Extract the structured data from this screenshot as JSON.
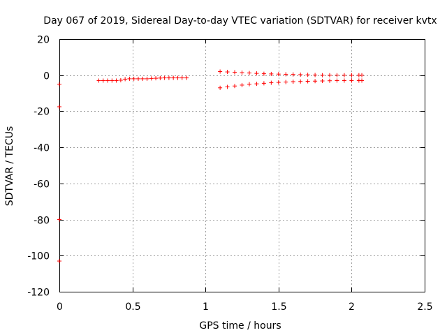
{
  "chart_data": {
    "type": "scatter",
    "title": "Day 067 of 2019, Sidereal Day-to-day VTEC variation (SDTVAR) for receiver kvtx",
    "xlabel": "GPS time / hours",
    "ylabel": "SDTVAR / TECUs",
    "xlim": [
      0,
      2.5
    ],
    "ylim": [
      -120,
      20
    ],
    "xticks": [
      0,
      0.5,
      1,
      1.5,
      2,
      2.5
    ],
    "xtick_labels": [
      "0",
      "0.5",
      "1",
      "1.5",
      "2",
      "2.5"
    ],
    "yticks": [
      20,
      0,
      -20,
      -40,
      -60,
      -80,
      -100,
      -120
    ],
    "ytick_labels": [
      "20",
      "0",
      "-20",
      "-40",
      "-60",
      "-80",
      "-100",
      "-120"
    ],
    "grid": true,
    "marker": "plus",
    "marker_color": "#ff0000",
    "series": [
      {
        "points": [
          [
            0.0,
            -5
          ],
          [
            0.0,
            -17.5
          ],
          [
            0.0,
            -80
          ],
          [
            0.0,
            -103
          ],
          [
            0.27,
            -3.0
          ],
          [
            0.3,
            -3.0
          ],
          [
            0.33,
            -3.0
          ],
          [
            0.36,
            -3.0
          ],
          [
            0.39,
            -3.0
          ],
          [
            0.42,
            -2.8
          ],
          [
            0.45,
            -2.2
          ],
          [
            0.48,
            -2.0
          ],
          [
            0.51,
            -2.0
          ],
          [
            0.54,
            -2.0
          ],
          [
            0.57,
            -2.0
          ],
          [
            0.6,
            -2.0
          ],
          [
            0.63,
            -1.8
          ],
          [
            0.66,
            -1.7
          ],
          [
            0.69,
            -1.6
          ],
          [
            0.72,
            -1.5
          ],
          [
            0.75,
            -1.5
          ],
          [
            0.78,
            -1.5
          ],
          [
            0.81,
            -1.5
          ],
          [
            0.84,
            -1.5
          ],
          [
            0.87,
            -1.5
          ],
          [
            1.1,
            2.0
          ],
          [
            1.15,
            1.8
          ],
          [
            1.2,
            1.6
          ],
          [
            1.25,
            1.4
          ],
          [
            1.3,
            1.2
          ],
          [
            1.35,
            1.0
          ],
          [
            1.4,
            0.8
          ],
          [
            1.45,
            0.7
          ],
          [
            1.5,
            0.6
          ],
          [
            1.55,
            0.5
          ],
          [
            1.6,
            0.4
          ],
          [
            1.65,
            0.3
          ],
          [
            1.7,
            0.2
          ],
          [
            1.75,
            0.1
          ],
          [
            1.8,
            0.0
          ],
          [
            1.85,
            0.0
          ],
          [
            1.9,
            0.0
          ],
          [
            1.95,
            0.0
          ],
          [
            2.0,
            0.0
          ],
          [
            2.05,
            0.0
          ],
          [
            2.07,
            0.0
          ],
          [
            1.1,
            -7.0
          ],
          [
            1.15,
            -6.5
          ],
          [
            1.2,
            -6.0
          ],
          [
            1.25,
            -5.5
          ],
          [
            1.3,
            -5.0
          ],
          [
            1.35,
            -4.8
          ],
          [
            1.4,
            -4.5
          ],
          [
            1.45,
            -4.2
          ],
          [
            1.5,
            -4.0
          ],
          [
            1.55,
            -3.8
          ],
          [
            1.6,
            -3.6
          ],
          [
            1.65,
            -3.5
          ],
          [
            1.7,
            -3.4
          ],
          [
            1.75,
            -3.3
          ],
          [
            1.8,
            -3.2
          ],
          [
            1.85,
            -3.1
          ],
          [
            1.9,
            -3.0
          ],
          [
            1.95,
            -3.0
          ],
          [
            2.0,
            -3.0
          ],
          [
            2.05,
            -3.0
          ],
          [
            2.07,
            -3.0
          ]
        ]
      }
    ]
  }
}
